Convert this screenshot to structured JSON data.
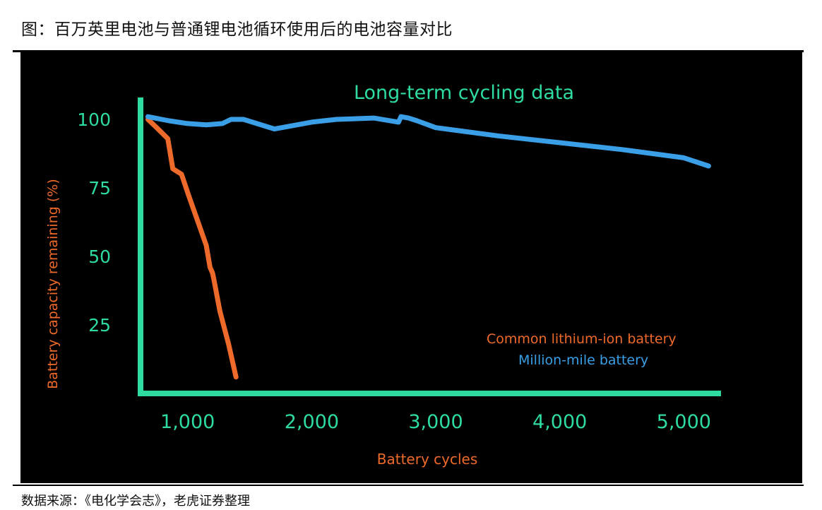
{
  "figure": {
    "title": "图：百万英里电池与普通锂电池循环使用后的电池容量对比",
    "source": "数据来源：《电化学会志》，老虎证券整理"
  },
  "colors": {
    "background": "#000000",
    "axis": "#2fdca0",
    "title": "#2fdca0",
    "ticks": "#2fdca0",
    "orange": "#ee6a2a",
    "blue": "#3a9fe6"
  },
  "chart_data": {
    "type": "line",
    "title": "Long-term cycling data",
    "xlabel": "Battery cycles",
    "ylabel": "Battery capacity remaining (%)",
    "xlim": [
      620,
      5300
    ],
    "ylim": [
      0,
      108
    ],
    "xticks": [
      1000,
      2000,
      3000,
      4000,
      5000
    ],
    "xtick_labels": [
      "1,000",
      "2,000",
      "3,000",
      "4,000",
      "5,000"
    ],
    "yticks": [
      100,
      75,
      50,
      25
    ],
    "ytick_labels": [
      "100",
      "75",
      "50",
      "25"
    ],
    "grid": false,
    "legend_position": "bottom-right",
    "series": [
      {
        "name": "Common lithium-ion battery",
        "color": "#ee6a2a",
        "x": [
          680,
          750,
          840,
          880,
          950,
          1010,
          1080,
          1150,
          1180,
          1200,
          1210,
          1260,
          1330,
          1390
        ],
        "y": [
          100,
          97,
          93,
          82,
          80,
          72,
          63,
          54,
          46,
          44,
          42,
          30,
          18,
          6
        ]
      },
      {
        "name": "Million-mile battery",
        "color": "#3a9fe6",
        "x": [
          680,
          850,
          1000,
          1150,
          1280,
          1350,
          1450,
          1700,
          2000,
          2200,
          2500,
          2700,
          2720,
          2780,
          2850,
          3000,
          3500,
          4000,
          4500,
          5000,
          5200
        ],
        "y": [
          101,
          99.5,
          98.5,
          98,
          98.5,
          100,
          100,
          96.5,
          99,
          100,
          100.5,
          99,
          101,
          100.5,
          99.5,
          97,
          94,
          91.5,
          89,
          86,
          83
        ]
      }
    ]
  }
}
